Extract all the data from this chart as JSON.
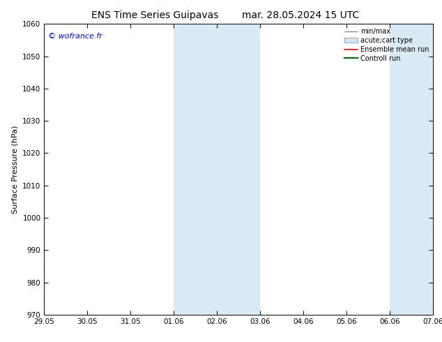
{
  "title_left": "ENS Time Series Guipavas",
  "title_right": "mar. 28.05.2024 15 UTC",
  "ylabel": "Surface Pressure (hPa)",
  "ylim": [
    970,
    1060
  ],
  "yticks": [
    970,
    980,
    990,
    1000,
    1010,
    1020,
    1030,
    1040,
    1050,
    1060
  ],
  "xtick_labels": [
    "29.05",
    "30.05",
    "31.05",
    "01.06",
    "02.06",
    "03.06",
    "04.06",
    "05.06",
    "06.06",
    "07.06"
  ],
  "xtick_positions": [
    0,
    1,
    2,
    3,
    4,
    5,
    6,
    7,
    8,
    9
  ],
  "shaded_bands": [
    {
      "x_start": 3.0,
      "x_end": 4.0,
      "color": "#daeaf5"
    },
    {
      "x_start": 4.0,
      "x_end": 5.0,
      "color": "#daeaf5"
    },
    {
      "x_start": 8.0,
      "x_end": 9.0,
      "color": "#daeaf5"
    }
  ],
  "copyright_text": "© wofrance.fr",
  "copyright_color": "#0000cc",
  "bg_color": "#ffffff",
  "plot_bg_color": "#ffffff",
  "title_fontsize": 10,
  "tick_fontsize": 7.5,
  "ylabel_fontsize": 8,
  "copyright_fontsize": 8
}
